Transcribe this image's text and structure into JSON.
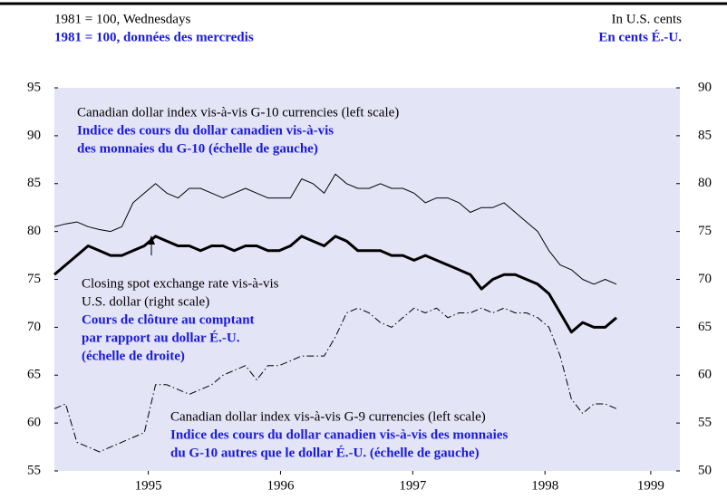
{
  "chart_data": {
    "type": "line",
    "header_left": [
      "1981 = 100, Wednesdays",
      "1981 = 100, données des mercredis"
    ],
    "header_right": [
      "In U.S. cents",
      "En cents É.-U."
    ],
    "annotations": [
      [
        "Canadian dollar index vis-à-vis G-10 currencies (left scale)",
        "Indice des cours du dollar canadien vis-à-vis",
        "des monnaies du G-10 (échelle de gauche)"
      ],
      [
        "Closing spot exchange rate vis-à-vis",
        "U.S. dollar (right scale)",
        "Cours de clôture au comptant",
        "par rapport au dollar É.-U.",
        "(échelle de droite)"
      ],
      [
        "Canadian dollar index vis-à-vis G-9 currencies (left scale)",
        "Indice des cours du dollar canadien vis-à-vis des monnaies",
        "du G-10 autres que le dollar É.-U. (échelle de gauche)"
      ]
    ],
    "x": [
      1994.79,
      1994.875,
      1994.96,
      1995.045,
      1995.13,
      1995.215,
      1995.3,
      1995.385,
      1995.47,
      1995.555,
      1995.64,
      1995.725,
      1995.81,
      1995.895,
      1995.98,
      1996.065,
      1996.15,
      1996.235,
      1996.32,
      1996.405,
      1996.49,
      1996.575,
      1996.66,
      1996.745,
      1996.83,
      1996.915,
      1997.0,
      1997.085,
      1997.17,
      1997.255,
      1997.34,
      1997.425,
      1997.51,
      1997.595,
      1997.68,
      1997.765,
      1997.85,
      1997.935,
      1998.02,
      1998.105,
      1998.19,
      1998.275,
      1998.36,
      1998.445,
      1998.53,
      1998.615,
      1998.7,
      1998.785,
      1998.87,
      1998.955,
      1999.04
    ],
    "xlim": [
      1994.79,
      1999.52
    ],
    "xticks": [
      {
        "value": 1995.5,
        "label": "1995"
      },
      {
        "value": 1996.5,
        "label": "1996"
      },
      {
        "value": 1997.5,
        "label": "1997"
      },
      {
        "value": 1998.5,
        "label": "1998"
      },
      {
        "value": 1999.3,
        "label": "1999"
      }
    ],
    "ylim": [
      55,
      95
    ],
    "yticks": [
      55,
      60,
      65,
      70,
      75,
      80,
      85,
      90,
      95
    ],
    "y2lim": [
      50,
      90
    ],
    "y2ticks": [
      50,
      55,
      60,
      65,
      70,
      75,
      80,
      85,
      90
    ],
    "series": [
      {
        "name": "Canadian dollar index vis-à-vis G-10 currencies (left scale)",
        "color": "#000000",
        "axis": "y",
        "values": [
          80.5,
          80.8,
          81,
          80.5,
          80.2,
          80,
          80.5,
          83,
          84,
          85,
          84,
          83.5,
          84.5,
          84.5,
          84,
          83.5,
          84,
          84.5,
          84,
          83.5,
          83.5,
          83.5,
          85.5,
          85,
          84,
          86,
          85,
          84.5,
          84.5,
          85,
          84.5,
          84.5,
          84,
          83,
          83.5,
          83.5,
          83,
          82,
          82.5,
          82.5,
          83,
          82,
          81,
          80,
          78,
          76.5,
          76,
          75,
          74.5,
          75,
          74.5
        ]
      },
      {
        "name": "Closing spot exchange rate vis-à-vis U.S. dollar (right scale)",
        "color": "#000000",
        "axis": "y2",
        "values": [
          70.5,
          71.5,
          72.5,
          73.5,
          73,
          72.5,
          72.5,
          73,
          73.5,
          74.5,
          74,
          73.5,
          73.5,
          73,
          73.5,
          73.5,
          73,
          73.5,
          73.5,
          73,
          73,
          73.5,
          74.5,
          74,
          73.5,
          74.5,
          74,
          73,
          73,
          73,
          72.5,
          72.5,
          72,
          72.5,
          72,
          71.5,
          71,
          70.5,
          69,
          70,
          70.5,
          70.5,
          70,
          69.5,
          68.5,
          66.5,
          64.5,
          65.5,
          65,
          65,
          66
        ]
      },
      {
        "name": "Canadian dollar index vis-à-vis G-9 currencies (left scale)",
        "color": "#000000",
        "axis": "y",
        "values": [
          61.5,
          62,
          58,
          57.5,
          57,
          57.5,
          58,
          58.5,
          59,
          64,
          64,
          63.5,
          63,
          63.5,
          64,
          65,
          65.5,
          66,
          64.5,
          66,
          66,
          66.5,
          67,
          67,
          67,
          69,
          71.5,
          72,
          71.5,
          70.5,
          70,
          71,
          72,
          71.5,
          72,
          71,
          71.5,
          71.5,
          72,
          71.5,
          72,
          71.5,
          71.5,
          71,
          70,
          67,
          62.5,
          61,
          62,
          62,
          61.5
        ]
      }
    ]
  }
}
